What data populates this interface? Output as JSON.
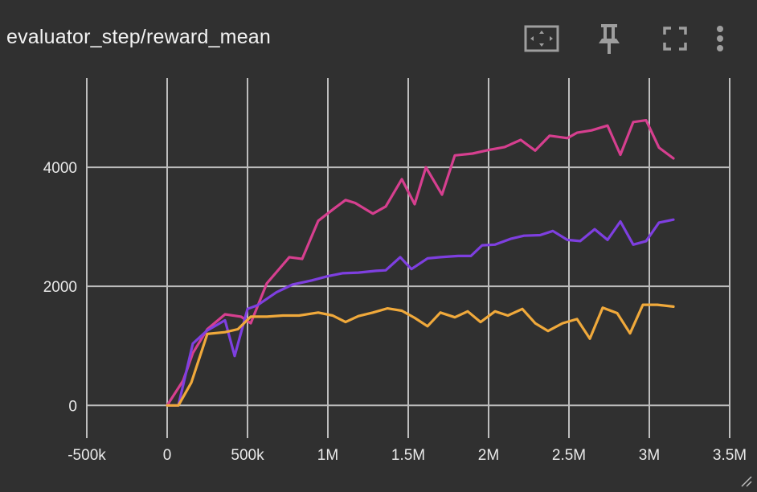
{
  "card": {
    "title": "evaluator_step/reward_mean"
  },
  "toolbar": {
    "icons": [
      "fit-domain-icon",
      "pin-icon",
      "fullscreen-icon",
      "more-vert-icon"
    ]
  },
  "colors": {
    "background": "#303030",
    "grid": "#bdbdbd",
    "series": [
      "#d63f8f",
      "#7e3fe0",
      "#f0a93b"
    ]
  },
  "chart_data": {
    "type": "line",
    "title": "evaluator_step/reward_mean",
    "xlabel": "",
    "ylabel": "",
    "xlim": [
      -500000,
      3500000
    ],
    "ylim": [
      -550,
      5500
    ],
    "x_ticks": [
      "-500k",
      "0",
      "500k",
      "1M",
      "1.5M",
      "2M",
      "2.5M",
      "3M",
      "3.5M"
    ],
    "y_ticks": [
      "0",
      "2000",
      "4000"
    ],
    "grid": true,
    "legend": "none",
    "series": [
      {
        "color": "#d63f8f",
        "x": [
          0,
          100000,
          160000,
          250000,
          360000,
          460000,
          520000,
          620000,
          760000,
          840000,
          940000,
          1040000,
          1110000,
          1170000,
          1280000,
          1360000,
          1460000,
          1540000,
          1610000,
          1710000,
          1790000,
          1900000,
          2000000,
          2100000,
          2200000,
          2290000,
          2380000,
          2490000,
          2550000,
          2640000,
          2740000,
          2820000,
          2900000,
          2980000,
          3060000,
          3150000
        ],
        "y": [
          0,
          420,
          880,
          1280,
          1530,
          1490,
          1380,
          2050,
          2490,
          2460,
          3100,
          3310,
          3450,
          3400,
          3220,
          3340,
          3800,
          3380,
          4000,
          3540,
          4200,
          4230,
          4290,
          4340,
          4460,
          4280,
          4530,
          4490,
          4580,
          4620,
          4700,
          4210,
          4760,
          4790,
          4330,
          4150
        ]
      },
      {
        "color": "#7e3fe0",
        "x": [
          0,
          70000,
          160000,
          250000,
          360000,
          420000,
          500000,
          560000,
          680000,
          780000,
          900000,
          1000000,
          1090000,
          1190000,
          1300000,
          1360000,
          1450000,
          1520000,
          1620000,
          1700000,
          1810000,
          1890000,
          1960000,
          2040000,
          2140000,
          2220000,
          2320000,
          2400000,
          2490000,
          2570000,
          2660000,
          2740000,
          2820000,
          2900000,
          2980000,
          3060000,
          3150000
        ],
        "y": [
          0,
          0,
          1040,
          1260,
          1430,
          830,
          1620,
          1680,
          1900,
          2030,
          2100,
          2170,
          2220,
          2230,
          2260,
          2270,
          2490,
          2290,
          2470,
          2490,
          2510,
          2510,
          2690,
          2700,
          2800,
          2850,
          2860,
          2930,
          2780,
          2760,
          2960,
          2780,
          3090,
          2700,
          2760,
          3070,
          3120
        ]
      },
      {
        "color": "#f0a93b",
        "x": [
          0,
          70000,
          150000,
          250000,
          360000,
          440000,
          520000,
          620000,
          720000,
          820000,
          940000,
          1030000,
          1110000,
          1190000,
          1280000,
          1370000,
          1460000,
          1540000,
          1620000,
          1700000,
          1790000,
          1870000,
          1950000,
          2040000,
          2120000,
          2210000,
          2290000,
          2370000,
          2460000,
          2550000,
          2630000,
          2710000,
          2800000,
          2880000,
          2960000,
          3050000,
          3150000
        ],
        "y": [
          0,
          0,
          380,
          1200,
          1230,
          1280,
          1490,
          1490,
          1510,
          1510,
          1560,
          1510,
          1400,
          1500,
          1560,
          1630,
          1590,
          1470,
          1330,
          1560,
          1480,
          1580,
          1400,
          1580,
          1510,
          1620,
          1380,
          1250,
          1380,
          1450,
          1120,
          1640,
          1550,
          1210,
          1690,
          1690,
          1660
        ]
      }
    ]
  }
}
